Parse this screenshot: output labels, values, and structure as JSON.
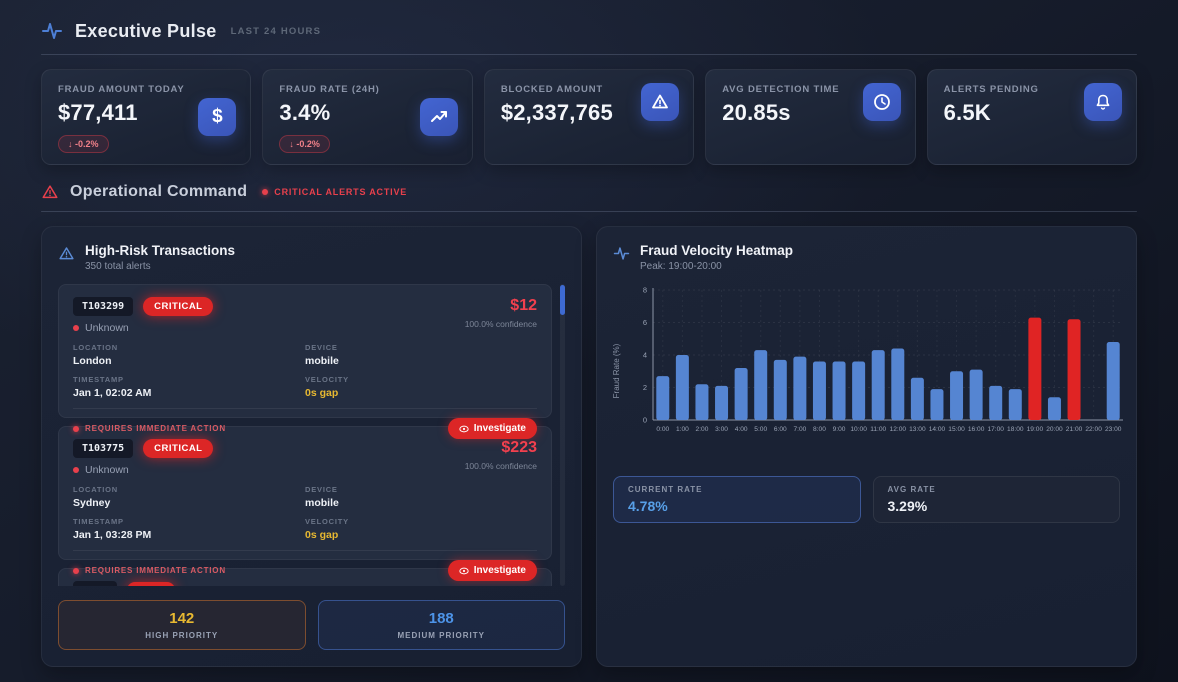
{
  "header": {
    "title": "Executive Pulse",
    "subtitle": "LAST 24 HOURS"
  },
  "kpis": [
    {
      "label": "FRAUD AMOUNT TODAY",
      "value": "$77,411",
      "badge": "↓ -0.2%",
      "icon": "dollar-icon"
    },
    {
      "label": "FRAUD RATE (24H)",
      "value": "3.4%",
      "badge": "↓ -0.2%",
      "icon": "trending-up-icon"
    },
    {
      "label": "BLOCKED AMOUNT",
      "value": "$2,337,765",
      "icon": "alert-triangle-icon"
    },
    {
      "label": "AVG DETECTION TIME",
      "value": "20.85s",
      "icon": "clock-icon"
    },
    {
      "label": "ALERTS PENDING",
      "value": "6.5K",
      "icon": "bell-icon"
    }
  ],
  "section": {
    "title": "Operational Command",
    "status": "CRITICAL ALERTS ACTIVE"
  },
  "transactions_panel": {
    "title": "High-Risk Transactions",
    "subtitle": "350 total alerts",
    "field_labels": {
      "location": "LOCATION",
      "device": "DEVICE",
      "timestamp": "TIMESTAMP",
      "velocity": "VELOCITY"
    },
    "items": [
      {
        "id": "T103299",
        "severity": "CRITICAL",
        "merchant": "Unknown",
        "amount": "$12",
        "confidence": "100.0% confidence",
        "location": "London",
        "device": "mobile",
        "timestamp": "Jan 1, 02:02 AM",
        "velocity": "0s gap",
        "note": "REQUIRES IMMEDIATE ACTION",
        "action": "Investigate"
      },
      {
        "id": "T103775",
        "severity": "CRITICAL",
        "merchant": "Unknown",
        "amount": "$223",
        "confidence": "100.0% confidence",
        "location": "Sydney",
        "device": "mobile",
        "timestamp": "Jan 1, 03:28 PM",
        "velocity": "0s gap",
        "note": "REQUIRES IMMEDIATE ACTION",
        "action": "Investigate"
      },
      {
        "id": "",
        "severity": "",
        "merchant": "",
        "amount": "",
        "confidence": "",
        "location": "",
        "device": "",
        "timestamp": "",
        "velocity": "",
        "note": "",
        "action": ""
      }
    ],
    "footer": [
      {
        "value": "142",
        "label": "HIGH PRIORITY"
      },
      {
        "value": "188",
        "label": "MEDIUM PRIORITY"
      }
    ]
  },
  "heatmap_panel": {
    "title": "Fraud Velocity Heatmap",
    "subtitle": "Peak: 19:00-20:00",
    "stats": [
      {
        "label": "CURRENT RATE",
        "value": "4.78%"
      },
      {
        "label": "AVG RATE",
        "value": "3.29%"
      }
    ]
  },
  "chart_data": {
    "type": "bar",
    "categories": [
      "0:00",
      "1:00",
      "2:00",
      "3:00",
      "4:00",
      "5:00",
      "6:00",
      "7:00",
      "8:00",
      "9:00",
      "10:00",
      "11:00",
      "12:00",
      "13:00",
      "14:00",
      "15:00",
      "16:00",
      "17:00",
      "18:00",
      "19:00",
      "20:00",
      "21:00",
      "22:00",
      "23:00"
    ],
    "values": [
      2.7,
      4.0,
      2.2,
      2.1,
      3.2,
      4.3,
      3.7,
      3.9,
      3.6,
      3.6,
      3.6,
      4.3,
      4.4,
      2.6,
      1.9,
      3.0,
      3.1,
      2.1,
      1.9,
      6.3,
      1.4,
      6.2,
      0,
      4.8
    ],
    "highlight_indexes": [
      19,
      21
    ],
    "title": "",
    "xlabel": "",
    "ylabel": "Fraud Rate (%)",
    "ylim": [
      0,
      8
    ],
    "yticks": [
      0,
      2,
      4,
      6,
      8
    ],
    "grid": true,
    "legend": false,
    "bar_color": "#5585d2",
    "highlight_color": "#e02424"
  },
  "colors": {
    "accent_blue": "#4365d2",
    "critical_red": "#dc2626",
    "amber": "#e8b931",
    "rate_blue": "#58a0e8",
    "bar_blue": "#5585d2",
    "bar_red": "#e02424"
  }
}
